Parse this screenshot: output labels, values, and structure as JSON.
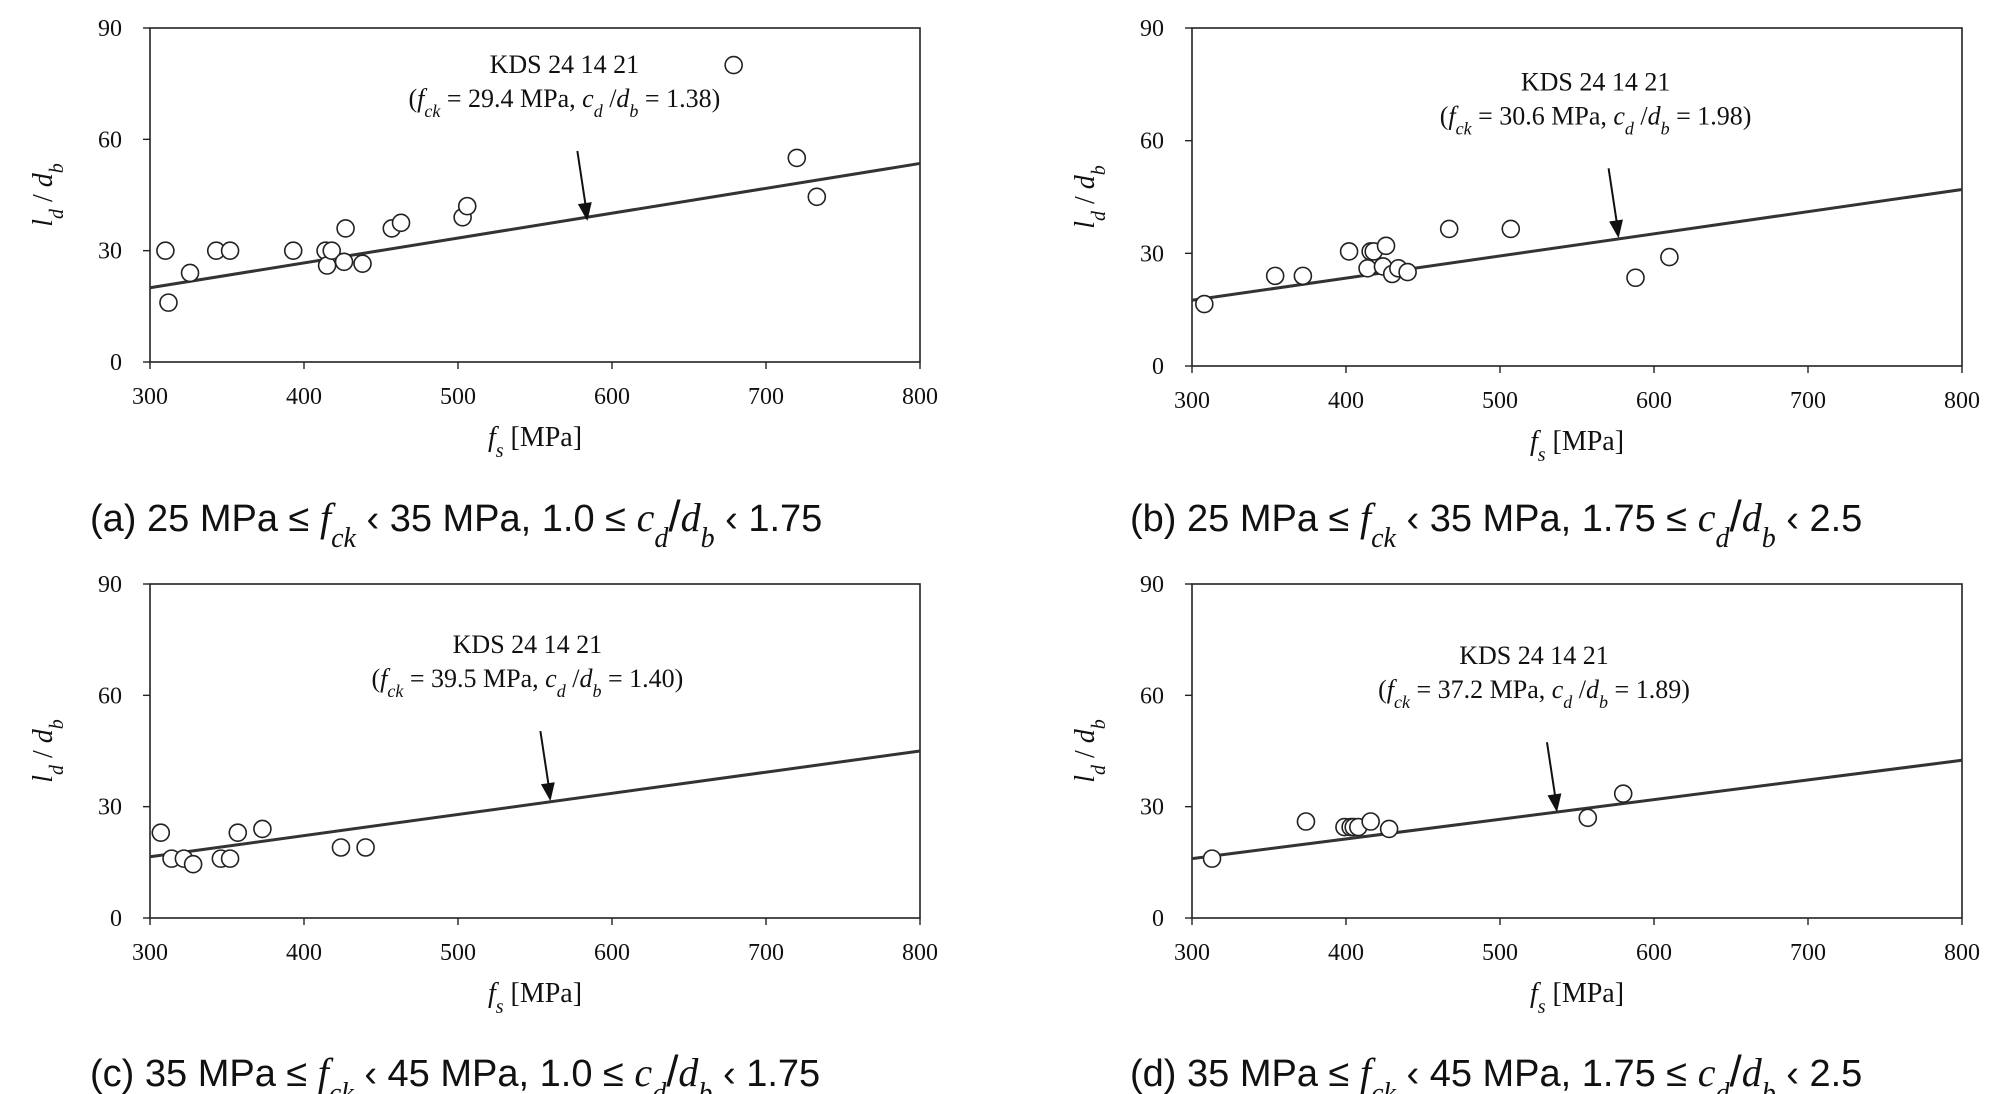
{
  "chart_data": [
    {
      "type": "scatter",
      "panel": "a",
      "caption": {
        "prefix": "(a) 25 MPa ≤ ",
        "fck": "f",
        "fck_sub": "ck",
        "mid": " ‹ 35 MPa, 1.0 ≤ ",
        "cd": "c",
        "cd_sub": "d",
        "slash": "/",
        "db": "d",
        "db_sub": "b",
        "suffix": " ‹ 1.75"
      },
      "xlabel": {
        "var": "f",
        "sub": "s",
        "unit": " [MPa]"
      },
      "ylabel": {
        "l": "l",
        "l_sub": "d",
        "slash": " / ",
        "d": "d",
        "d_sub": "b"
      },
      "xlim": [
        300,
        800
      ],
      "ylim": [
        0,
        90
      ],
      "xticks": [
        300,
        400,
        500,
        600,
        700,
        800
      ],
      "yticks": [
        0,
        30,
        60,
        90
      ],
      "line": {
        "name": "KDS 24 14 21",
        "x": [
          300,
          800
        ],
        "y": [
          20,
          53.5
        ]
      },
      "annotation": {
        "title": "KDS 24 14 21",
        "open": "(",
        "fck": "f",
        "fck_sub": "ck",
        "fck_val": " = 29.4 MPa, ",
        "cd": "c",
        "cd_sub": "d",
        "slash": " /",
        "db": "d",
        "db_sub": "b",
        "cd_val": " = 1.38)",
        "arrow_x": 584,
        "arrow_y": 38
      },
      "points": [
        [
          310,
          30
        ],
        [
          312,
          16
        ],
        [
          326,
          24
        ],
        [
          343,
          30
        ],
        [
          352,
          30
        ],
        [
          393,
          30
        ],
        [
          414,
          30
        ],
        [
          415,
          26
        ],
        [
          418,
          30
        ],
        [
          426,
          27
        ],
        [
          427,
          36
        ],
        [
          438,
          26.5
        ],
        [
          457,
          36
        ],
        [
          463,
          37.5
        ],
        [
          503,
          39
        ],
        [
          506,
          42
        ],
        [
          679,
          80
        ],
        [
          720,
          55
        ],
        [
          733,
          44.5
        ]
      ]
    },
    {
      "type": "scatter",
      "panel": "b",
      "caption": {
        "prefix": "(b) 25 MPa ≤ ",
        "fck": "f",
        "fck_sub": "ck",
        "mid": " ‹ 35 MPa, 1.75 ≤ ",
        "cd": "c",
        "cd_sub": "d",
        "slash": "/",
        "db": "d",
        "db_sub": "b",
        "suffix": " ‹ 2.5"
      },
      "xlabel": {
        "var": "f",
        "sub": "s",
        "unit": " [MPa]"
      },
      "ylabel": {
        "l": "l",
        "l_sub": "d",
        "slash": " / ",
        "d": "d",
        "d_sub": "b"
      },
      "xlim": [
        300,
        800
      ],
      "ylim": [
        0,
        90
      ],
      "xticks": [
        300,
        400,
        500,
        600,
        700,
        800
      ],
      "yticks": [
        0,
        30,
        60,
        90
      ],
      "line": {
        "name": "KDS 24 14 21",
        "x": [
          300,
          800
        ],
        "y": [
          17.5,
          47
        ]
      },
      "annotation": {
        "title": "KDS 24 14 21",
        "open": "(",
        "fck": "f",
        "fck_sub": "ck",
        "fck_val": " = 30.6 MPa, ",
        "cd": "c",
        "cd_sub": "d",
        "slash": " /",
        "db": "d",
        "db_sub": "b",
        "cd_val": " = 1.98)",
        "arrow_x": 577,
        "arrow_y": 34
      },
      "points": [
        [
          308,
          16.5
        ],
        [
          354,
          24
        ],
        [
          372,
          24
        ],
        [
          402,
          30.5
        ],
        [
          414,
          26
        ],
        [
          416,
          30.5
        ],
        [
          418,
          30.5
        ],
        [
          424,
          26.5
        ],
        [
          426,
          32
        ],
        [
          430,
          24.5
        ],
        [
          434,
          26
        ],
        [
          440,
          25
        ],
        [
          467,
          36.5
        ],
        [
          507,
          36.5
        ],
        [
          588,
          23.5
        ],
        [
          610,
          29
        ]
      ]
    },
    {
      "type": "scatter",
      "panel": "c",
      "caption": {
        "prefix": "(c) 35 MPa ≤ ",
        "fck": "f",
        "fck_sub": "ck",
        "mid": " ‹ 45 MPa, 1.0 ≤ ",
        "cd": "c",
        "cd_sub": "d",
        "slash": "/",
        "db": "d",
        "db_sub": "b",
        "suffix": " ‹ 1.75"
      },
      "xlabel": {
        "var": "f",
        "sub": "s",
        "unit": " [MPa]"
      },
      "ylabel": {
        "l": "l",
        "l_sub": "d",
        "slash": " / ",
        "d": "d",
        "d_sub": "b"
      },
      "xlim": [
        300,
        800
      ],
      "ylim": [
        0,
        90
      ],
      "xticks": [
        300,
        400,
        500,
        600,
        700,
        800
      ],
      "yticks": [
        0,
        30,
        60,
        90
      ],
      "line": {
        "name": "KDS 24 14 21",
        "x": [
          300,
          800
        ],
        "y": [
          16.5,
          45
        ]
      },
      "annotation": {
        "title": "KDS 24 14 21",
        "open": "(",
        "fck": "f",
        "fck_sub": "ck",
        "fck_val": " = 39.5 MPa, ",
        "cd": "c",
        "cd_sub": "d",
        "slash": " /",
        "db": "d",
        "db_sub": "b",
        "cd_val": " = 1.40)",
        "arrow_x": 560,
        "arrow_y": 31.5
      },
      "points": [
        [
          307,
          23
        ],
        [
          314,
          16
        ],
        [
          322,
          16
        ],
        [
          328,
          14.5
        ],
        [
          346,
          16
        ],
        [
          352,
          16
        ],
        [
          357,
          23
        ],
        [
          373,
          24
        ],
        [
          424,
          19
        ],
        [
          440,
          19
        ]
      ]
    },
    {
      "type": "scatter",
      "panel": "d",
      "caption": {
        "prefix": "(d) 35 MPa ≤ ",
        "fck": "f",
        "fck_sub": "ck",
        "mid": " ‹ 45 MPa, 1.75 ≤ ",
        "cd": "c",
        "cd_sub": "d",
        "slash": "/",
        "db": "d",
        "db_sub": "b",
        "suffix": " ‹ 2.5"
      },
      "xlabel": {
        "var": "f",
        "sub": "s",
        "unit": " [MPa]"
      },
      "ylabel": {
        "l": "l",
        "l_sub": "d",
        "slash": " / ",
        "d": "d",
        "d_sub": "b"
      },
      "xlim": [
        300,
        800
      ],
      "ylim": [
        0,
        90
      ],
      "xticks": [
        300,
        400,
        500,
        600,
        700,
        800
      ],
      "yticks": [
        0,
        30,
        60,
        90
      ],
      "line": {
        "name": "KDS 24 14 21",
        "x": [
          300,
          800
        ],
        "y": [
          16,
          42.5
        ]
      },
      "annotation": {
        "title": "KDS 24 14 21",
        "open": "(",
        "fck": "f",
        "fck_sub": "ck",
        "fck_val": " = 37.2 MPa, ",
        "cd": "c",
        "cd_sub": "d",
        "slash": " /",
        "db": "d",
        "db_sub": "b",
        "cd_val": " = 1.89)",
        "arrow_x": 537,
        "arrow_y": 28.5
      },
      "points": [
        [
          313,
          16
        ],
        [
          374,
          26
        ],
        [
          399,
          24.5
        ],
        [
          403,
          24.5
        ],
        [
          405,
          24.5
        ],
        [
          408,
          24.5
        ],
        [
          416,
          26
        ],
        [
          428,
          24
        ],
        [
          557,
          27
        ],
        [
          580,
          33.5
        ]
      ]
    }
  ]
}
